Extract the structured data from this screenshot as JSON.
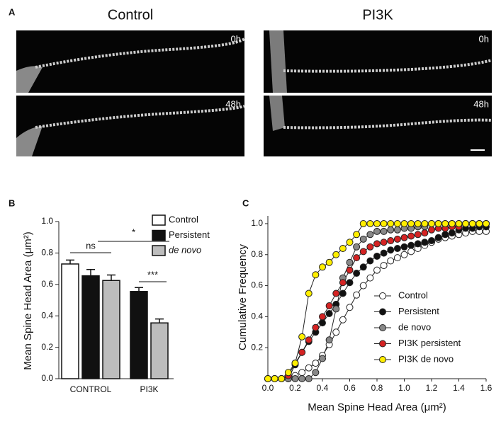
{
  "panel_labels": [
    "A",
    "B",
    "C"
  ],
  "panel_a": {
    "columns": [
      "Control",
      "PI3K"
    ],
    "timepoints": [
      "0h",
      "48h"
    ]
  },
  "chart_data": [
    {
      "type": "bar",
      "y_label": "Mean Spine Head Area (μm²)",
      "categories": [
        "CONTROL",
        "PI3K"
      ],
      "series": [
        {
          "name": "Control",
          "color": "#ffffff",
          "values": [
            0.73,
            null
          ],
          "errors": [
            0.025,
            null
          ]
        },
        {
          "name": "Persistent",
          "color": "#111111",
          "values": [
            0.655,
            0.555
          ],
          "errors": [
            0.04,
            0.025
          ]
        },
        {
          "name": "de novo",
          "color": "#bdbdbd",
          "values": [
            0.625,
            0.355
          ],
          "errors": [
            0.035,
            0.025
          ]
        }
      ],
      "annotations": [
        "ns",
        "*",
        "***"
      ],
      "ylim": [
        0,
        1
      ],
      "yticks": [
        {
          "value": 0,
          "label": "0.0"
        },
        0.2,
        0.4,
        0.6,
        0.8,
        {
          "value": 1,
          "label": "1.0"
        }
      ]
    },
    {
      "type": "line",
      "x_label": "Mean Spine Head Area (μm²)",
      "y_label": "Cumulative Frequency",
      "x": [
        0,
        0.05,
        0.1,
        0.15,
        0.2,
        0.25,
        0.3,
        0.35,
        0.4,
        0.45,
        0.5,
        0.55,
        0.6,
        0.65,
        0.7,
        0.75,
        0.8,
        0.85,
        0.9,
        0.95,
        1.0,
        1.05,
        1.1,
        1.15,
        1.2,
        1.25,
        1.3,
        1.35,
        1.4,
        1.45,
        1.5,
        1.55,
        1.6
      ],
      "series": [
        {
          "name": "Control",
          "color": "#ffffff",
          "values": [
            0,
            0,
            0,
            0,
            0.02,
            0.04,
            0.07,
            0.1,
            0.15,
            0.22,
            0.3,
            0.38,
            0.46,
            0.54,
            0.6,
            0.65,
            0.7,
            0.73,
            0.76,
            0.78,
            0.8,
            0.82,
            0.84,
            0.86,
            0.88,
            0.9,
            0.91,
            0.92,
            0.93,
            0.94,
            0.95,
            0.95,
            0.95
          ]
        },
        {
          "name": "Persistent",
          "color": "#111111",
          "values": [
            0,
            0,
            0,
            0,
            0.09,
            0.17,
            0.24,
            0.3,
            0.36,
            0.42,
            0.48,
            0.55,
            0.62,
            0.68,
            0.72,
            0.76,
            0.79,
            0.81,
            0.83,
            0.84,
            0.85,
            0.86,
            0.87,
            0.88,
            0.89,
            0.91,
            0.93,
            0.94,
            0.96,
            0.97,
            0.97,
            0.98,
            0.98
          ]
        },
        {
          "name": "de novo",
          "color": "#888888",
          "values": [
            0,
            0,
            0,
            0,
            0,
            0,
            0,
            0.04,
            0.13,
            0.25,
            0.45,
            0.65,
            0.75,
            0.85,
            0.9,
            0.93,
            0.95,
            0.95,
            0.96,
            0.96,
            0.97,
            0.97,
            0.98,
            0.98,
            1,
            1,
            1,
            1,
            1,
            1,
            1,
            1,
            1
          ]
        },
        {
          "name": "PI3K persistent",
          "color": "#d42323",
          "values": [
            0,
            0,
            0,
            0.02,
            0.1,
            0.17,
            0.25,
            0.33,
            0.4,
            0.47,
            0.55,
            0.62,
            0.7,
            0.78,
            0.82,
            0.85,
            0.87,
            0.88,
            0.89,
            0.9,
            0.91,
            0.92,
            0.93,
            0.94,
            0.96,
            0.97,
            0.97,
            0.98,
            0.98,
            1,
            1,
            1,
            1
          ]
        },
        {
          "name": "PI3K de novo",
          "color": "#ffee00",
          "values": [
            0,
            0,
            0,
            0.04,
            0.1,
            0.27,
            0.55,
            0.67,
            0.72,
            0.75,
            0.8,
            0.84,
            0.88,
            0.93,
            1,
            1,
            1,
            1,
            1,
            1,
            1,
            1,
            1,
            1,
            1,
            1,
            1,
            1,
            1,
            1,
            1,
            1,
            1
          ]
        }
      ],
      "xlim": [
        0,
        1.6
      ],
      "xticks": [
        {
          "value": 0,
          "label": "0.0"
        },
        0.2,
        0.4,
        0.6,
        0.8,
        {
          "value": 1,
          "label": "1.0"
        },
        1.2,
        1.4,
        1.6
      ],
      "ylim": [
        0,
        1.05
      ],
      "yticks": [
        0.2,
        0.4,
        0.6,
        0.8,
        {
          "value": 1,
          "label": "1.0"
        }
      ]
    }
  ]
}
